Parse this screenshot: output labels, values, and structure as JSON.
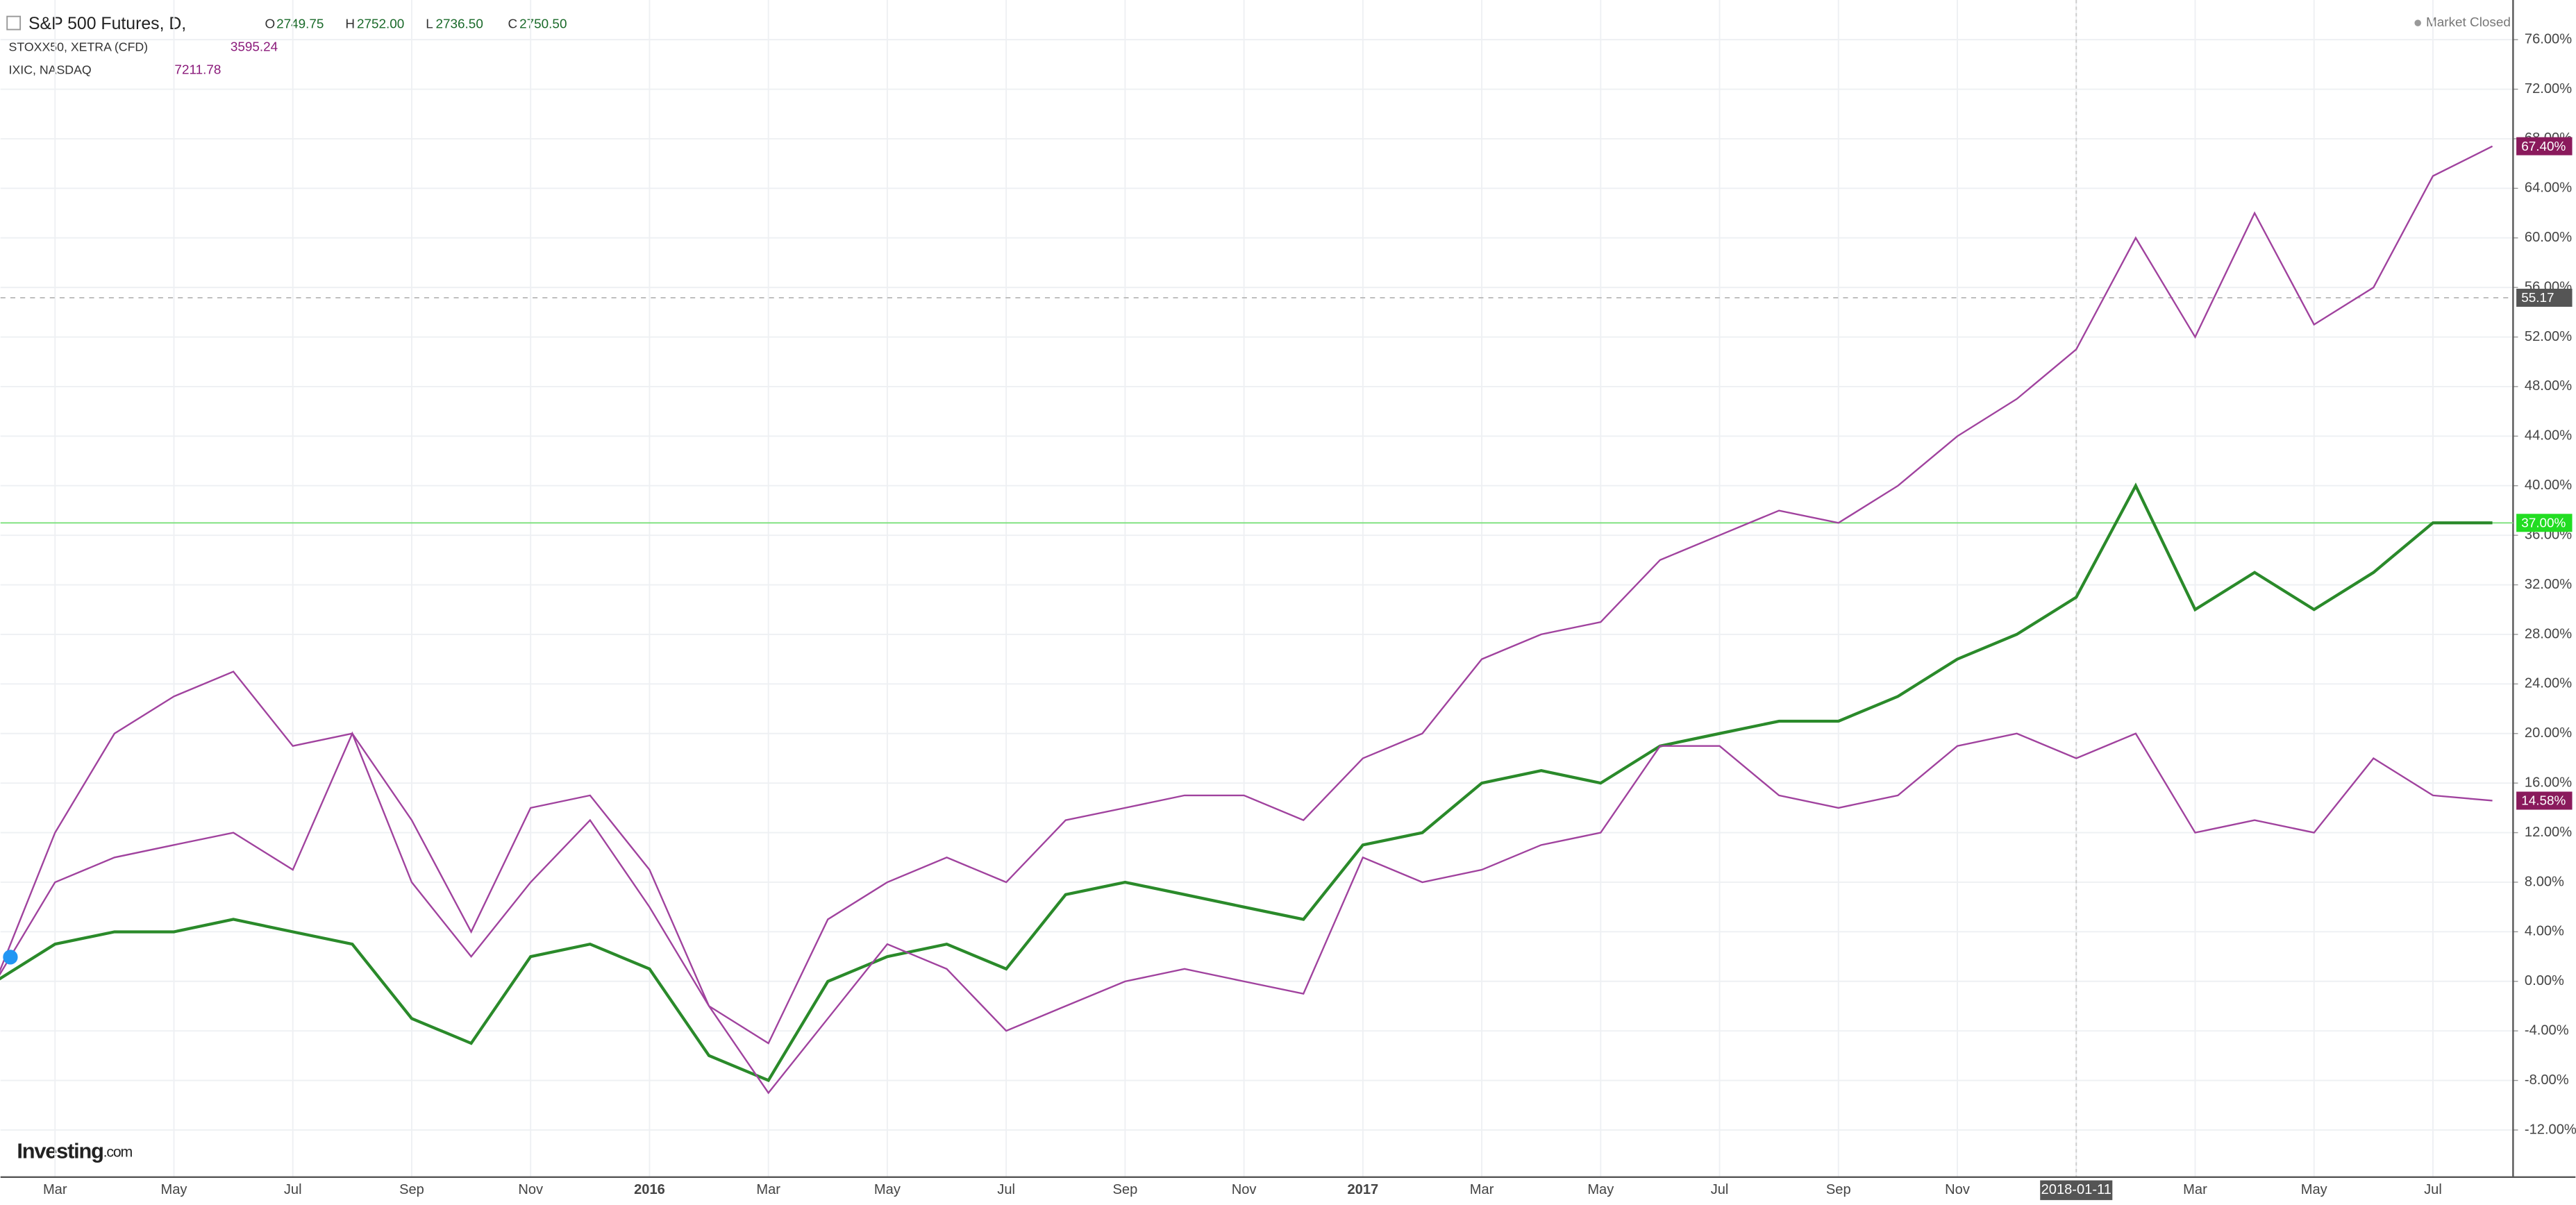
{
  "chart_data": {
    "type": "line",
    "categories": [
      null,
      "Mar",
      null,
      "May",
      null,
      "Jul",
      null,
      "Sep",
      null,
      "Nov",
      null,
      "2016",
      null,
      "Mar",
      null,
      "May",
      null,
      "Jul",
      null,
      "Sep",
      null,
      "Nov",
      null,
      "2017",
      null,
      "Mar",
      null,
      "May",
      null,
      "Jul",
      null,
      "Sep",
      null,
      "Nov",
      null,
      "2018-01-11",
      null,
      "Mar",
      null,
      "May",
      null,
      "Jul",
      null
    ],
    "series": [
      {
        "name": "IXIC, NASDAQ",
        "color": "#a0429e",
        "values": [
          0,
          12,
          20,
          23,
          25,
          19,
          20,
          13,
          4,
          14,
          15,
          9,
          -2,
          -5,
          5,
          8,
          10,
          8,
          13,
          14,
          15,
          15,
          13,
          18,
          20,
          26,
          28,
          29,
          34,
          36,
          38,
          37,
          40,
          44,
          47,
          51,
          60,
          52,
          62,
          53,
          56,
          65,
          67.4
        ]
      },
      {
        "name": "S&P 500 Futures, D,",
        "color": "#2a8a2a",
        "values": [
          0,
          3,
          4,
          4,
          5,
          4,
          3,
          -3,
          -5,
          2,
          3,
          1,
          -6,
          -8,
          0,
          2,
          3,
          1,
          7,
          8,
          7,
          6,
          5,
          11,
          12,
          16,
          17,
          16,
          19,
          20,
          21,
          21,
          23,
          26,
          28,
          31,
          40,
          30,
          33,
          30,
          33,
          37,
          37
        ]
      },
      {
        "name": "STOXX50, XETRA (CFD)",
        "color": "#a0429e",
        "values": [
          0,
          8,
          10,
          11,
          12,
          9,
          20,
          8,
          2,
          8,
          13,
          6,
          -2,
          -9,
          -3,
          3,
          1,
          -4,
          -2,
          0,
          1,
          0,
          -1,
          10,
          8,
          9,
          11,
          12,
          19,
          19,
          15,
          14,
          15,
          19,
          20,
          18,
          20,
          12,
          13,
          12,
          18,
          15,
          14.58
        ]
      }
    ],
    "ylim": [
      -15.8,
      79.2
    ],
    "yticks": [
      {
        "value": -12,
        "label": "-12.00%"
      },
      {
        "value": -8,
        "label": "-8.00%"
      },
      {
        "value": -4,
        "label": "-4.00%"
      },
      {
        "value": 0,
        "label": "0.00%"
      },
      {
        "value": 4,
        "label": "4.00%"
      },
      {
        "value": 8,
        "label": "8.00%"
      },
      {
        "value": 12,
        "label": "12.00%"
      },
      {
        "value": 16,
        "label": "16.00%"
      },
      {
        "value": 20,
        "label": "20.00%"
      },
      {
        "value": 24,
        "label": "24.00%"
      },
      {
        "value": 28,
        "label": "28.00%"
      },
      {
        "value": 32,
        "label": "32.00%"
      },
      {
        "value": 36,
        "label": "36.00%"
      },
      {
        "value": 40,
        "label": "40.00%"
      },
      {
        "value": 44,
        "label": "44.00%"
      },
      {
        "value": 48,
        "label": "48.00%"
      },
      {
        "value": 52,
        "label": "52.00%"
      },
      {
        "value": 56,
        "label": "56.00%"
      },
      {
        "value": 60,
        "label": "60.00%"
      },
      {
        "value": 64,
        "label": "64.00%"
      },
      {
        "value": 68,
        "label": "68.00%"
      },
      {
        "value": 72,
        "label": "72.00%"
      },
      {
        "value": 76,
        "label": "76.00%"
      }
    ],
    "grid": true,
    "price_labels": [
      {
        "value": 67.4,
        "label": "67.40%",
        "color": "#8a1a5c"
      },
      {
        "value": 55.17,
        "label": "55.17",
        "color": "#555555"
      },
      {
        "value": 37,
        "label": "37.00%",
        "color": "#22dd22"
      },
      {
        "value": 14.58,
        "label": "14.58%",
        "color": "#8a1a5c"
      }
    ]
  },
  "header": {
    "main": "S&P 500 Futures, D,",
    "o_label": "O",
    "o": "2749.75",
    "h_label": "H",
    "h": "2752.00",
    "l_label": "L",
    "l": "2736.50",
    "c_label": "C",
    "c": "2750.50",
    "stoxx": "STOXX50, XETRA (CFD)",
    "stoxx_value": "3595.24",
    "ixic": "IXIC, NASDAQ",
    "ixic_value": "7211.78",
    "status": "Market Closed",
    "logo": "Investing",
    "logo_suffix": ".com"
  }
}
